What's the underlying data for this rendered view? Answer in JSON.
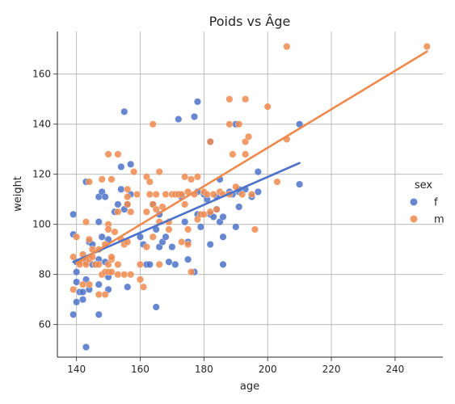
{
  "chart_data": {
    "type": "scatter",
    "title": "Poids vs Âge",
    "xlabel": "age",
    "ylabel": "weight",
    "xlim": [
      134,
      255
    ],
    "ylim": [
      47,
      177
    ],
    "xticks": [
      140,
      160,
      180,
      200,
      220,
      240
    ],
    "yticks": [
      60,
      80,
      100,
      120,
      140,
      160
    ],
    "grid": true,
    "legend": {
      "title": "sex",
      "placement": "right"
    },
    "series": [
      {
        "name": "f",
        "color": "#4c72c9",
        "points": [
          [
            139,
            104
          ],
          [
            139,
            96
          ],
          [
            139,
            64
          ],
          [
            140,
            69
          ],
          [
            140,
            77
          ],
          [
            140,
            81
          ],
          [
            140,
            85
          ],
          [
            141,
            73
          ],
          [
            142,
            70
          ],
          [
            142,
            73
          ],
          [
            143,
            117
          ],
          [
            143,
            78
          ],
          [
            143,
            85
          ],
          [
            143,
            51
          ],
          [
            144,
            93
          ],
          [
            144,
            74
          ],
          [
            145,
            92
          ],
          [
            145,
            84
          ],
          [
            146,
            84
          ],
          [
            147,
            111
          ],
          [
            147,
            101
          ],
          [
            147,
            86
          ],
          [
            147,
            76
          ],
          [
            147,
            64
          ],
          [
            148,
            113
          ],
          [
            148,
            95
          ],
          [
            149,
            111
          ],
          [
            149,
            85
          ],
          [
            150,
            94
          ],
          [
            150,
            79
          ],
          [
            150,
            74
          ],
          [
            152,
            105
          ],
          [
            153,
            108
          ],
          [
            154,
            114
          ],
          [
            154,
            123
          ],
          [
            155,
            106
          ],
          [
            155,
            145
          ],
          [
            156,
            108
          ],
          [
            156,
            75
          ],
          [
            157,
            124
          ],
          [
            157,
            112
          ],
          [
            160,
            95
          ],
          [
            161,
            92
          ],
          [
            162,
            84
          ],
          [
            163,
            84
          ],
          [
            164,
            108
          ],
          [
            165,
            98
          ],
          [
            165,
            67
          ],
          [
            166,
            104
          ],
          [
            166,
            91
          ],
          [
            167,
            93
          ],
          [
            168,
            95
          ],
          [
            169,
            85
          ],
          [
            170,
            91
          ],
          [
            171,
            84
          ],
          [
            172,
            142
          ],
          [
            172,
            112
          ],
          [
            173,
            111
          ],
          [
            174,
            101
          ],
          [
            175,
            86
          ],
          [
            175,
            93
          ],
          [
            177,
            143
          ],
          [
            177,
            81
          ],
          [
            178,
            149
          ],
          [
            178,
            113
          ],
          [
            178,
            104
          ],
          [
            179,
            99
          ],
          [
            180,
            112
          ],
          [
            181,
            110
          ],
          [
            182,
            133
          ],
          [
            182,
            104
          ],
          [
            182,
            92
          ],
          [
            183,
            103
          ],
          [
            184,
            111
          ],
          [
            184,
            106
          ],
          [
            185,
            101
          ],
          [
            185,
            118
          ],
          [
            186,
            95
          ],
          [
            186,
            84
          ],
          [
            186,
            103
          ],
          [
            188,
            113
          ],
          [
            189,
            112
          ],
          [
            190,
            99
          ],
          [
            190,
            140
          ],
          [
            191,
            107
          ],
          [
            191,
            113
          ],
          [
            191,
            114
          ],
          [
            193,
            114
          ],
          [
            195,
            111
          ],
          [
            197,
            121
          ],
          [
            197,
            113
          ],
          [
            210,
            140
          ],
          [
            210,
            116
          ]
        ],
        "trend": [
          [
            139,
            85
          ],
          [
            210,
            124.5
          ]
        ]
      },
      {
        "name": "m",
        "color": "#ee8a4e",
        "points": [
          [
            139,
            87
          ],
          [
            139,
            74
          ],
          [
            140,
            95
          ],
          [
            141,
            85
          ],
          [
            141,
            84
          ],
          [
            142,
            88
          ],
          [
            142,
            76
          ],
          [
            143,
            101
          ],
          [
            143,
            85
          ],
          [
            143,
            84
          ],
          [
            144,
            117
          ],
          [
            144,
            94
          ],
          [
            144,
            86
          ],
          [
            144,
            76
          ],
          [
            145,
            90
          ],
          [
            145,
            87
          ],
          [
            146,
            84
          ],
          [
            147,
            90
          ],
          [
            147,
            84
          ],
          [
            147,
            72
          ],
          [
            148,
            118
          ],
          [
            148,
            80
          ],
          [
            149,
            92
          ],
          [
            149,
            81
          ],
          [
            149,
            72
          ],
          [
            150,
            128
          ],
          [
            150,
            100
          ],
          [
            150,
            98
          ],
          [
            150,
            84
          ],
          [
            150,
            81
          ],
          [
            151,
            118
          ],
          [
            151,
            86
          ],
          [
            151,
            81
          ],
          [
            151,
            87
          ],
          [
            152,
            97
          ],
          [
            153,
            105
          ],
          [
            153,
            128
          ],
          [
            153,
            84
          ],
          [
            153,
            80
          ],
          [
            154,
            94
          ],
          [
            155,
            92
          ],
          [
            155,
            80
          ],
          [
            156,
            114
          ],
          [
            156,
            111
          ],
          [
            156,
            108
          ],
          [
            156,
            93
          ],
          [
            157,
            105
          ],
          [
            157,
            80
          ],
          [
            158,
            121
          ],
          [
            159,
            112
          ],
          [
            160,
            84
          ],
          [
            160,
            78
          ],
          [
            161,
            75
          ],
          [
            162,
            119
          ],
          [
            162,
            105
          ],
          [
            162,
            91
          ],
          [
            163,
            117
          ],
          [
            163,
            112
          ],
          [
            164,
            140
          ],
          [
            164,
            108
          ],
          [
            164,
            95
          ],
          [
            165,
            112
          ],
          [
            165,
            106
          ],
          [
            166,
            121
          ],
          [
            166,
            101
          ],
          [
            166,
            84
          ],
          [
            167,
            107
          ],
          [
            168,
            112
          ],
          [
            169,
            98
          ],
          [
            169,
            101
          ],
          [
            170,
            112
          ],
          [
            171,
            112
          ],
          [
            172,
            112
          ],
          [
            173,
            112
          ],
          [
            173,
            93
          ],
          [
            174,
            119
          ],
          [
            174,
            108
          ],
          [
            175,
            113
          ],
          [
            175,
            98
          ],
          [
            175,
            92
          ],
          [
            176,
            118
          ],
          [
            176,
            81
          ],
          [
            177,
            112
          ],
          [
            178,
            119
          ],
          [
            178,
            102
          ],
          [
            179,
            104
          ],
          [
            180,
            104
          ],
          [
            180,
            113
          ],
          [
            181,
            112
          ],
          [
            182,
            105
          ],
          [
            182,
            133
          ],
          [
            183,
            112
          ],
          [
            184,
            106
          ],
          [
            185,
            113
          ],
          [
            186,
            112
          ],
          [
            188,
            150
          ],
          [
            188,
            140
          ],
          [
            188,
            112
          ],
          [
            189,
            128
          ],
          [
            190,
            115
          ],
          [
            191,
            140
          ],
          [
            192,
            112
          ],
          [
            193,
            150
          ],
          [
            193,
            133
          ],
          [
            193,
            128
          ],
          [
            194,
            135
          ],
          [
            195,
            112
          ],
          [
            196,
            98
          ],
          [
            200,
            147
          ],
          [
            203,
            117
          ],
          [
            206,
            171
          ],
          [
            206,
            134
          ],
          [
            250,
            171
          ]
        ],
        "trend": [
          [
            140,
            84.5
          ],
          [
            250,
            169
          ]
        ]
      }
    ]
  }
}
